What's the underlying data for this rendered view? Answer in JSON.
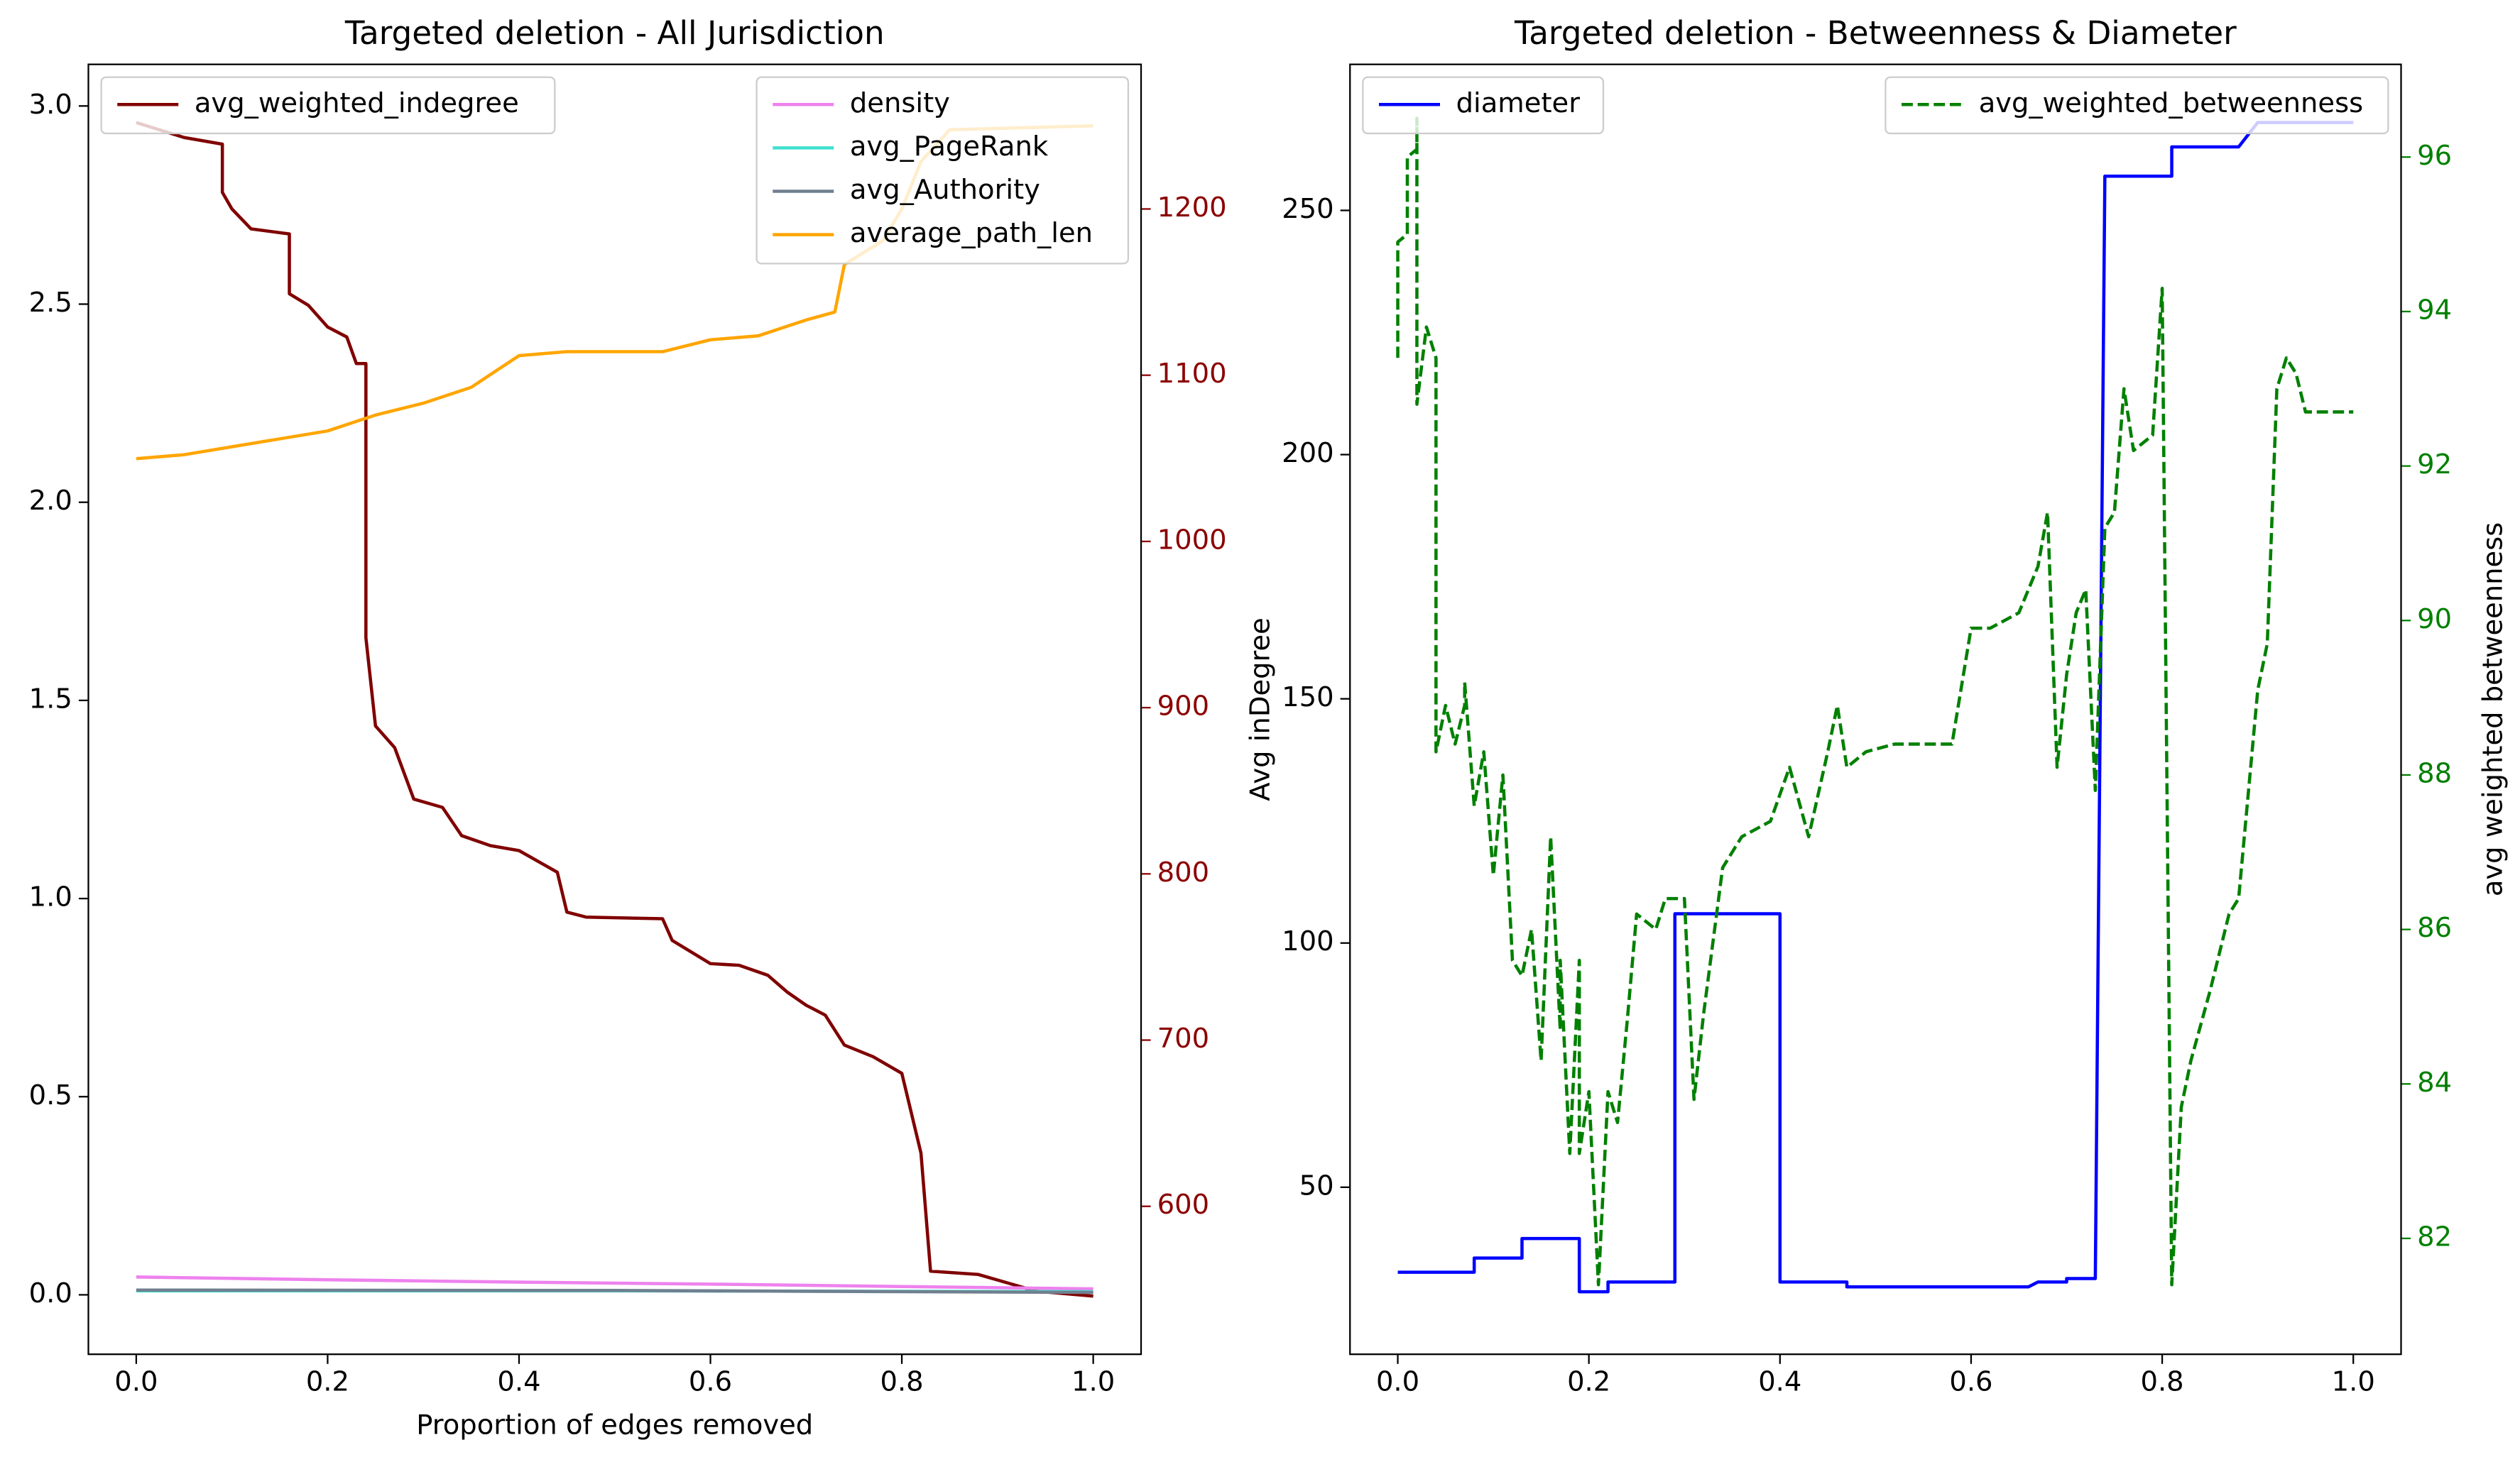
{
  "chart_data": [
    {
      "type": "line",
      "title": "Targeted deletion - All Jurisdiction",
      "xlabel": "Proportion of edges removed",
      "xlim": [
        -0.05,
        1.05
      ],
      "xticks": [
        {
          "value": 0,
          "label": "0.0"
        },
        0.2,
        0.4,
        0.6,
        0.8,
        {
          "value": 1,
          "label": "1.0"
        }
      ],
      "ylim": [
        -0.15,
        3.105
      ],
      "yticks": [
        {
          "value": 0,
          "label": "0.0"
        },
        0.5,
        {
          "value": 1,
          "label": "1.0"
        },
        1.5,
        {
          "value": 2,
          "label": "2.0"
        },
        2.5,
        {
          "value": 3,
          "label": "3.0"
        }
      ],
      "y2lim": [
        511,
        1287
      ],
      "y2ticks": [
        600,
        700,
        800,
        900,
        1000,
        1100,
        1200
      ],
      "y2_color": "#8b0000",
      "legend_y2": "upper left",
      "legend_y": "upper right",
      "series": [
        {
          "name": "avg_weighted_indegree",
          "color": "#800000",
          "axis": "y2",
          "x": [
            0,
            0.05,
            0.09,
            0.09,
            0.1,
            0.12,
            0.16,
            0.16,
            0.18,
            0.2,
            0.22,
            0.23,
            0.24,
            0.24,
            0.25,
            0.27,
            0.29,
            0.32,
            0.34,
            0.37,
            0.4,
            0.44,
            0.45,
            0.47,
            0.55,
            0.56,
            0.6,
            0.63,
            0.66,
            0.68,
            0.7,
            0.72,
            0.74,
            0.77,
            0.8,
            0.82,
            0.83,
            0.88,
            0.94,
            1.0
          ],
          "values": [
            1252,
            1243,
            1239,
            1210,
            1200,
            1188,
            1185,
            1149,
            1142,
            1129,
            1123,
            1107,
            1107,
            942,
            889,
            876,
            845,
            840,
            823,
            817,
            814,
            801,
            777,
            774,
            773,
            760,
            746,
            745,
            739,
            729,
            721,
            715,
            697,
            690,
            680,
            632,
            561,
            559,
            549,
            546
          ]
        },
        {
          "name": "density",
          "color": "#ee82ee",
          "axis": "y",
          "x": [
            0,
            0.2,
            0.4,
            0.6,
            0.8,
            1.0
          ],
          "values": [
            0.045,
            0.038,
            0.032,
            0.027,
            0.021,
            0.015
          ]
        },
        {
          "name": "avg_PageRank",
          "color": "#40e0d0",
          "axis": "y",
          "x": [
            0,
            0.5,
            1.0
          ],
          "values": [
            0.01,
            0.01,
            0.008
          ]
        },
        {
          "name": "avg_Authority",
          "color": "#708090",
          "axis": "y",
          "x": [
            0,
            0.5,
            1.0
          ],
          "values": [
            0.012,
            0.011,
            0.006
          ]
        },
        {
          "name": "average_path_len",
          "color": "#ffa500",
          "axis": "y",
          "x": [
            0,
            0.05,
            0.1,
            0.2,
            0.25,
            0.3,
            0.35,
            0.4,
            0.45,
            0.5,
            0.55,
            0.6,
            0.65,
            0.7,
            0.73,
            0.74,
            0.78,
            0.8,
            0.82,
            0.85,
            1.0
          ],
          "values": [
            2.11,
            2.12,
            2.14,
            2.18,
            2.22,
            2.25,
            2.29,
            2.37,
            2.38,
            2.38,
            2.38,
            2.41,
            2.42,
            2.46,
            2.48,
            2.6,
            2.66,
            2.74,
            2.86,
            2.94,
            2.95
          ]
        }
      ]
    },
    {
      "type": "line",
      "title": "Targeted deletion - Betweenness & Diameter",
      "ylabel": "Avg inDegree",
      "y2label": "avg weighted betweenness",
      "xlim": [
        -0.05,
        1.05
      ],
      "xticks": [
        {
          "value": 0,
          "label": "0.0"
        },
        0.2,
        0.4,
        0.6,
        0.8,
        {
          "value": 1,
          "label": "1.0"
        }
      ],
      "ylim": [
        15.8,
        279.9
      ],
      "yticks": [
        50,
        100,
        150,
        200,
        250
      ],
      "y2lim": [
        80.5,
        97.2
      ],
      "y2ticks": [
        82,
        84,
        86,
        88,
        90,
        92,
        94,
        96
      ],
      "y2_color": "#008000",
      "legend_y": "upper left",
      "legend_y2": "upper right",
      "series": [
        {
          "name": "diameter",
          "color": "#0000ff",
          "axis": "y",
          "x": [
            0,
            0.08,
            0.08,
            0.13,
            0.13,
            0.19,
            0.19,
            0.22,
            0.22,
            0.29,
            0.29,
            0.4,
            0.4,
            0.47,
            0.47,
            0.66,
            0.67,
            0.7,
            0.7,
            0.73,
            0.74,
            0.81,
            0.81,
            0.88,
            0.9,
            1.0
          ],
          "values": [
            32.6,
            32.6,
            35.5,
            35.5,
            39.5,
            39.5,
            28.6,
            28.6,
            30.6,
            30.6,
            106,
            106,
            30.6,
            30.6,
            29.6,
            29.6,
            30.6,
            30.6,
            31.3,
            31.3,
            257,
            257,
            263,
            263,
            268,
            268
          ]
        },
        {
          "name": "avg_weighted_betweenness",
          "color": "#008000",
          "axis": "y2",
          "linestyle": "dashed",
          "x": [
            0,
            0,
            0.01,
            0.01,
            0.02,
            0.02,
            0.02,
            0.03,
            0.04,
            0.04,
            0.05,
            0.06,
            0.07,
            0.07,
            0.08,
            0.09,
            0.1,
            0.11,
            0.12,
            0.13,
            0.14,
            0.15,
            0.16,
            0.17,
            0.17,
            0.18,
            0.19,
            0.19,
            0.2,
            0.21,
            0.22,
            0.23,
            0.24,
            0.25,
            0.27,
            0.28,
            0.3,
            0.31,
            0.32,
            0.34,
            0.36,
            0.39,
            0.41,
            0.43,
            0.45,
            0.46,
            0.47,
            0.49,
            0.52,
            0.58,
            0.6,
            0.62,
            0.65,
            0.67,
            0.68,
            0.69,
            0.7,
            0.71,
            0.72,
            0.73,
            0.74,
            0.75,
            0.76,
            0.77,
            0.79,
            0.8,
            0.81,
            0.82,
            0.83,
            0.85,
            0.87,
            0.88,
            0.9,
            0.91,
            0.92,
            0.93,
            0.94,
            0.95,
            1.0
          ],
          "values": [
            93.4,
            94.9,
            95.0,
            96.0,
            96.1,
            96.5,
            92.8,
            93.8,
            93.4,
            88.3,
            88.9,
            88.4,
            88.9,
            89.2,
            87.6,
            88.3,
            86.7,
            88.0,
            85.6,
            85.4,
            86.0,
            84.3,
            87.2,
            84.7,
            85.6,
            83.1,
            85.6,
            83.1,
            83.9,
            81.4,
            83.9,
            83.5,
            84.8,
            86.2,
            86.0,
            86.4,
            86.4,
            83.8,
            84.9,
            86.8,
            87.2,
            87.4,
            88.1,
            87.2,
            88.3,
            88.9,
            88.1,
            88.3,
            88.4,
            88.4,
            89.9,
            89.9,
            90.1,
            90.7,
            91.4,
            88.1,
            89.3,
            90.1,
            90.4,
            87.8,
            91.2,
            91.4,
            93.0,
            92.2,
            92.4,
            94.3,
            81.4,
            83.7,
            84.3,
            85.2,
            86.2,
            86.4,
            89.1,
            89.7,
            93.0,
            93.4,
            93.2,
            92.7,
            92.7
          ]
        }
      ]
    }
  ]
}
